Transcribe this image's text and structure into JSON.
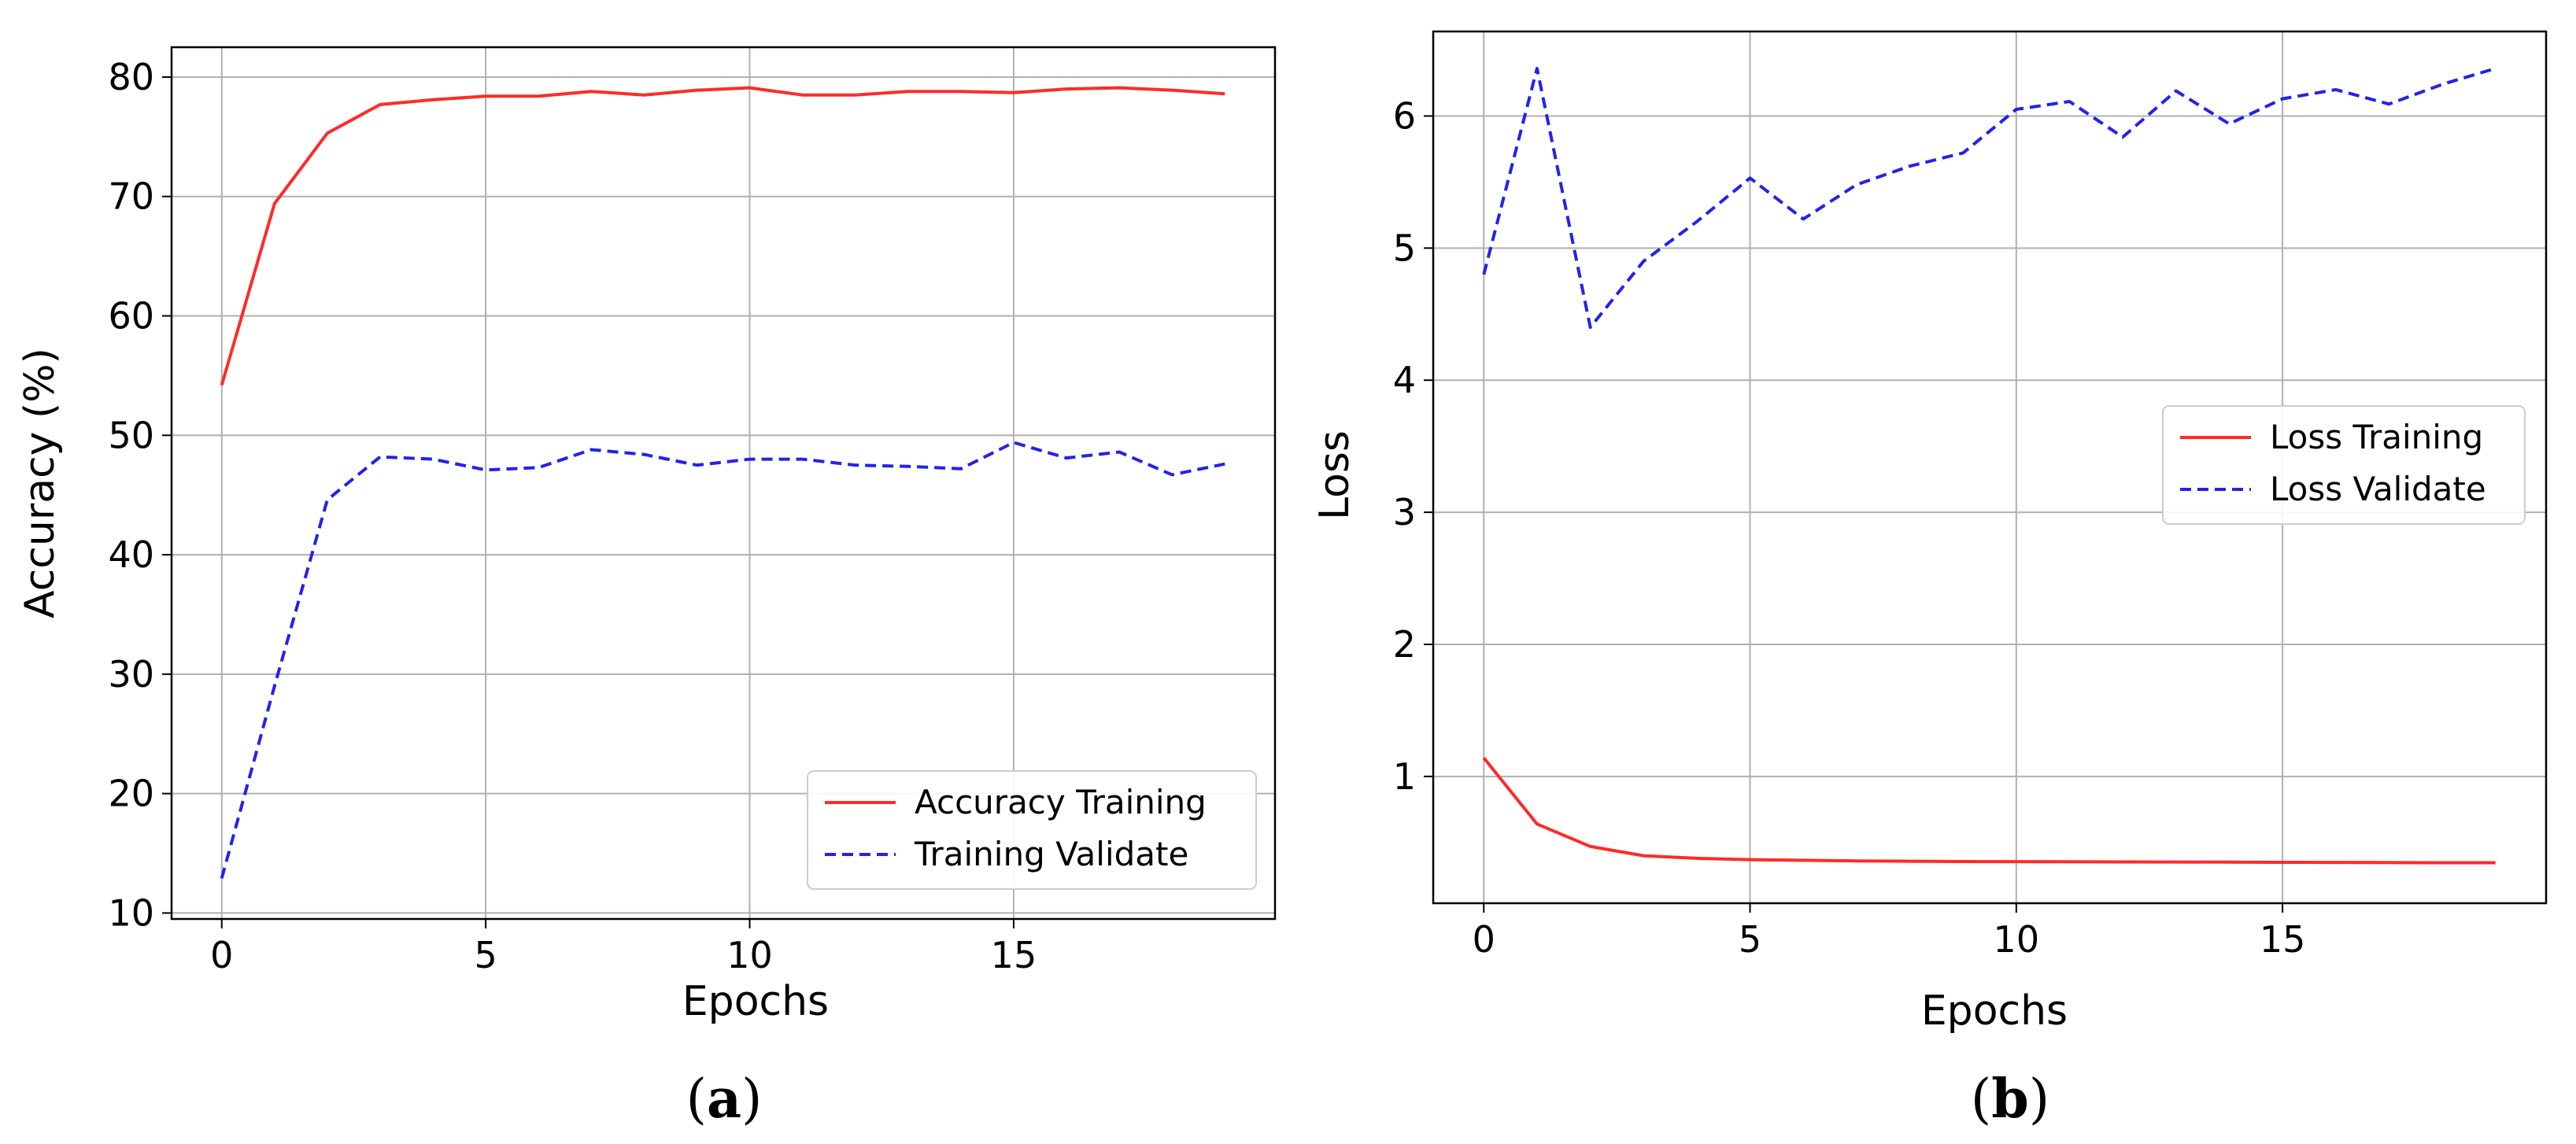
{
  "chart_data": [
    {
      "type": "line",
      "panel_label": "a",
      "xlabel": "Epochs",
      "ylabel": "Accuracy (%)",
      "xlim": [
        -0.95,
        19.95
      ],
      "ylim": [
        9.5,
        82.5
      ],
      "xticks": [
        0,
        5,
        10,
        15
      ],
      "yticks": [
        10,
        20,
        30,
        40,
        50,
        60,
        70,
        80
      ],
      "grid": true,
      "legend_position": "bottom-right",
      "series": [
        {
          "name": "Accuracy Training",
          "color": "#ff2a2a",
          "style": "solid",
          "x": [
            0,
            1,
            2,
            3,
            4,
            5,
            6,
            7,
            8,
            9,
            10,
            11,
            12,
            13,
            14,
            15,
            16,
            17,
            18,
            19
          ],
          "values": [
            54.2,
            69.4,
            75.3,
            77.7,
            78.1,
            78.4,
            78.4,
            78.8,
            78.5,
            78.9,
            79.1,
            78.5,
            78.5,
            78.8,
            78.8,
            78.7,
            79.0,
            79.1,
            78.9,
            78.6
          ]
        },
        {
          "name": "Training Validate",
          "color": "#2222ee",
          "style": "dashed",
          "x": [
            0,
            1,
            2,
            3,
            4,
            5,
            6,
            7,
            8,
            9,
            10,
            11,
            12,
            13,
            14,
            15,
            16,
            17,
            18,
            19
          ],
          "values": [
            12.9,
            29.0,
            44.6,
            48.2,
            48.0,
            47.1,
            47.3,
            48.8,
            48.4,
            47.5,
            48.0,
            48.0,
            47.5,
            47.4,
            47.2,
            49.4,
            48.1,
            48.6,
            46.7,
            47.6
          ]
        }
      ]
    },
    {
      "type": "line",
      "panel_label": "b",
      "xlabel": "Epochs",
      "ylabel": "Loss",
      "xlim": [
        -0.95,
        19.95
      ],
      "ylim": [
        0.04,
        6.64
      ],
      "xticks": [
        0,
        5,
        10,
        15
      ],
      "yticks": [
        1,
        2,
        3,
        4,
        5,
        6
      ],
      "grid": true,
      "legend_position": "center-right",
      "series": [
        {
          "name": "Loss Training",
          "color": "#ff2a2a",
          "style": "solid",
          "x": [
            0,
            1,
            2,
            3,
            4,
            5,
            6,
            7,
            8,
            9,
            10,
            11,
            12,
            13,
            14,
            15,
            16,
            17,
            18,
            19
          ],
          "values": [
            1.14,
            0.64,
            0.47,
            0.4,
            0.38,
            0.37,
            0.365,
            0.36,
            0.358,
            0.356,
            0.355,
            0.354,
            0.353,
            0.352,
            0.351,
            0.35,
            0.349,
            0.348,
            0.347,
            0.347
          ]
        },
        {
          "name": "Loss Validate",
          "color": "#2222ee",
          "style": "dashed",
          "x": [
            0,
            1,
            2,
            3,
            4,
            5,
            6,
            7,
            8,
            9,
            10,
            11,
            12,
            13,
            14,
            15,
            16,
            17,
            18,
            19
          ],
          "values": [
            4.8,
            6.36,
            4.4,
            4.9,
            5.2,
            5.53,
            5.22,
            5.48,
            5.62,
            5.72,
            6.05,
            6.11,
            5.84,
            6.19,
            5.94,
            6.13,
            6.2,
            6.09,
            6.24,
            6.36
          ]
        }
      ]
    }
  ]
}
